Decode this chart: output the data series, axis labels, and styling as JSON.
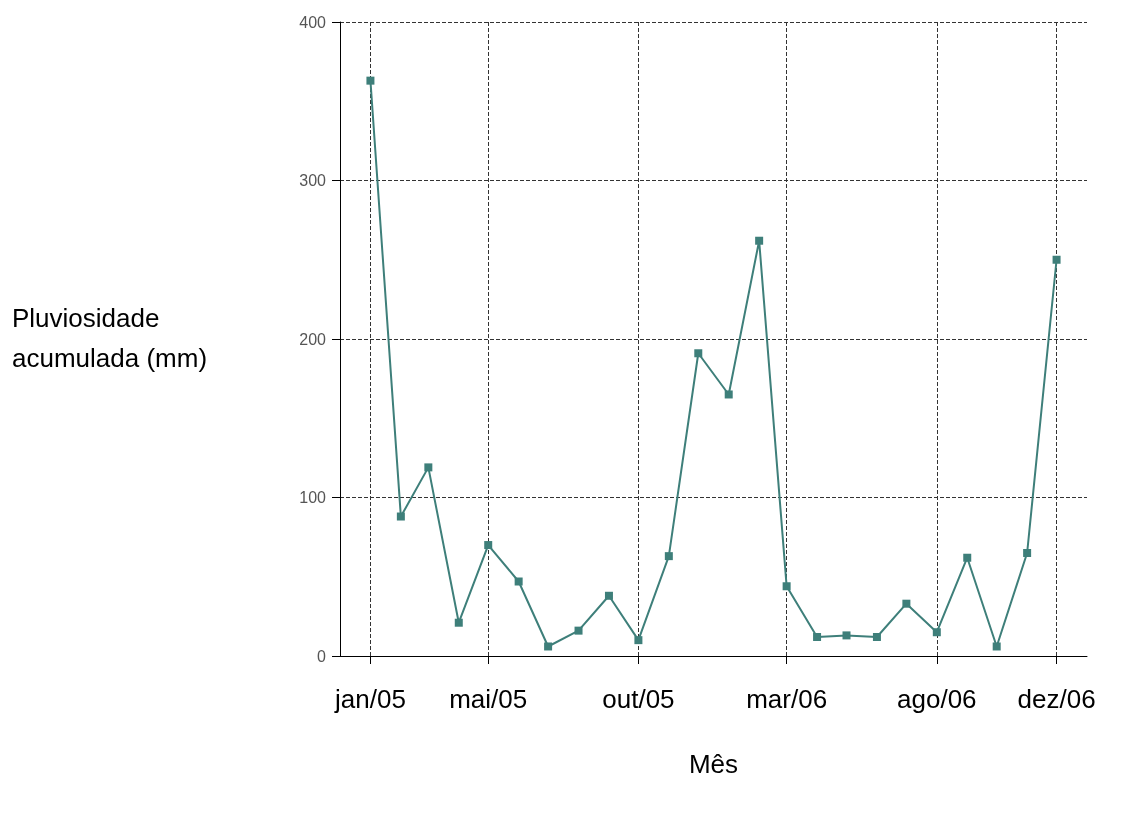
{
  "chart_data": {
    "type": "line",
    "xlabel": "Mês",
    "ylabel": "Pluviosidade acumulada (mm)",
    "x": [
      "2005-01",
      "2005-02",
      "2005-03",
      "2005-04",
      "2005-05",
      "2005-06",
      "2005-07",
      "2005-08",
      "2005-09",
      "2005-10",
      "2005-11",
      "2005-12",
      "2006-01",
      "2006-02",
      "2006-03",
      "2006-04",
      "2006-05",
      "2006-06",
      "2006-07",
      "2006-08",
      "2006-09",
      "2006-10",
      "2006-11",
      "2006-12"
    ],
    "series": [
      {
        "color": "#3e7f7a",
        "values": [
          363,
          88,
          119,
          21,
          70,
          47,
          6,
          16,
          38,
          10,
          63,
          191,
          165,
          262,
          44,
          12,
          13,
          12,
          33,
          15,
          62,
          6,
          65,
          250
        ]
      }
    ],
    "xlim": [
      "2004-12",
      "2007-01"
    ],
    "xticks": [
      {
        "value": "2005-01",
        "label": "jan/05"
      },
      {
        "value": "2005-05",
        "label": "mai/05"
      },
      {
        "value": "2005-10",
        "label": "out/05"
      },
      {
        "value": "2006-03",
        "label": "mar/06"
      },
      {
        "value": "2006-08",
        "label": "ago/06"
      },
      {
        "value": "2006-12",
        "label": "dez/06"
      }
    ],
    "ylim": [
      0,
      400
    ],
    "yticks": [
      0,
      100,
      200,
      300,
      400
    ],
    "grid": true,
    "marker": "square",
    "line_style": "solid"
  }
}
